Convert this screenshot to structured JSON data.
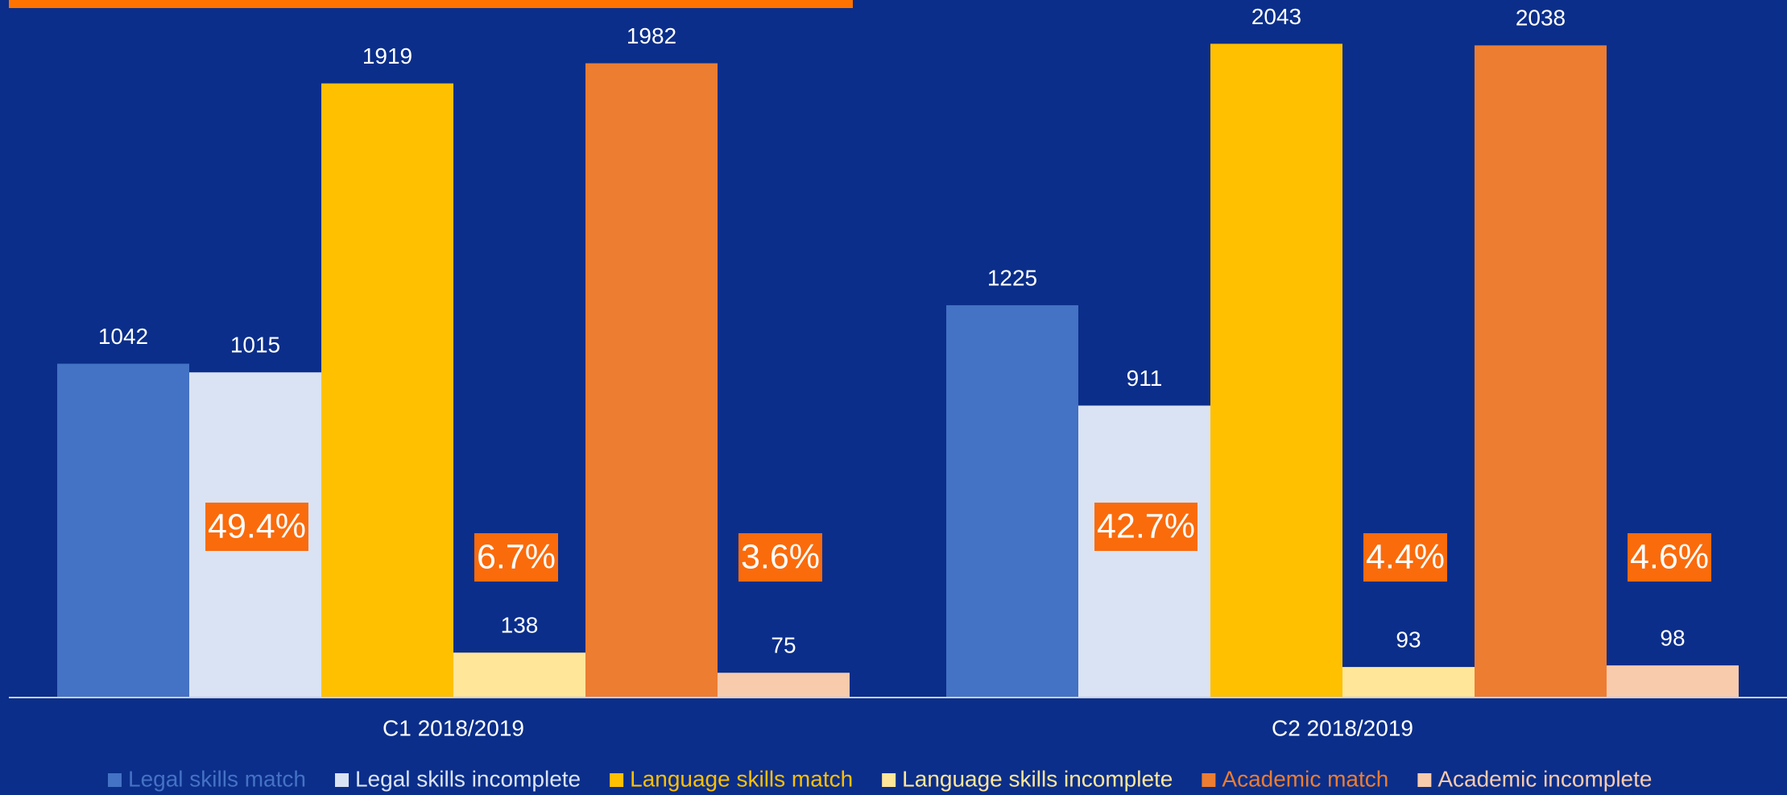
{
  "chart_data": {
    "type": "bar",
    "categories": [
      "C1 2018/2019",
      "C2 2018/2019"
    ],
    "series": [
      {
        "name": "Legal skills match",
        "color": "#4472c4",
        "values": [
          1042,
          1225
        ]
      },
      {
        "name": "Legal skills incomplete",
        "color": "#dae3f3",
        "values": [
          1015,
          911
        ]
      },
      {
        "name": "Language skills match",
        "color": "#ffc000",
        "values": [
          1919,
          2043
        ]
      },
      {
        "name": "Language skills incomplete",
        "color": "#ffe699",
        "values": [
          138,
          93
        ]
      },
      {
        "name": "Academic match",
        "color": "#ed7d31",
        "values": [
          1982,
          2038
        ]
      },
      {
        "name": "Academic incomplete",
        "color": "#f8cbad",
        "values": [
          75,
          98
        ]
      }
    ],
    "annotations": [
      [
        "49.4%",
        "6.7%",
        "3.6%"
      ],
      [
        "42.7%",
        "4.4%",
        "4.6%"
      ]
    ],
    "ylim": [
      0,
      2180
    ]
  }
}
